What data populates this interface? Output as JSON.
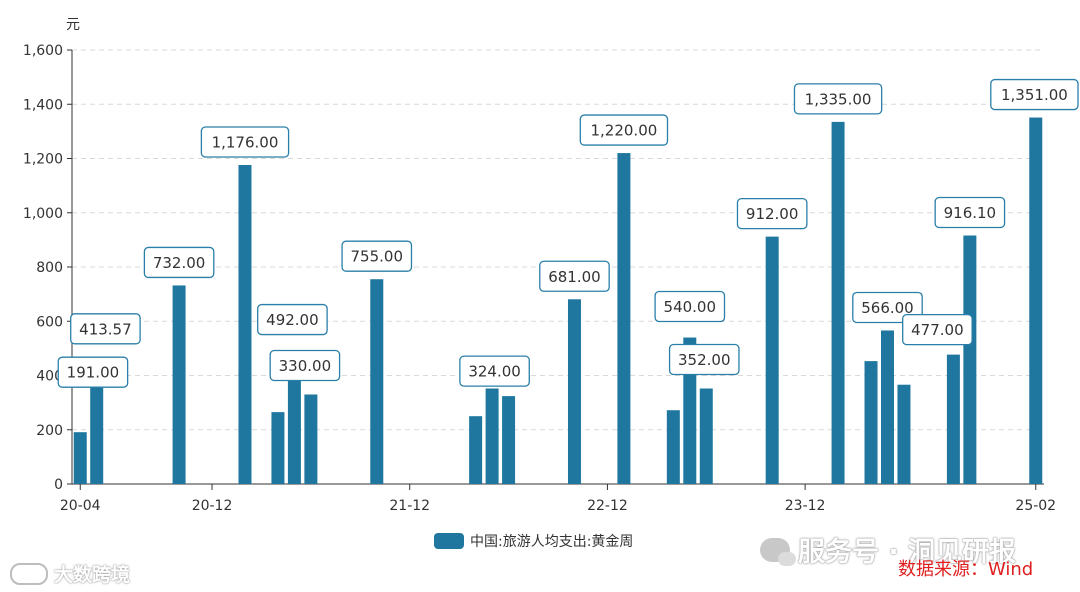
{
  "chart_data": {
    "type": "bar",
    "title": "",
    "ylabel": "元",
    "xlabel": "",
    "ylim": [
      0,
      1600
    ],
    "yticks": [
      "0",
      "200",
      "400",
      "600",
      "800",
      "1,000",
      "1,200",
      "1,400",
      "1,600"
    ],
    "xtick_labels": [
      "20-04",
      "20-12",
      "21-12",
      "22-12",
      "23-12",
      "25-02"
    ],
    "grid": true,
    "legend_position": "bottom-center",
    "series": [
      {
        "name": "中国:旅游人均支出:黄金周",
        "color": "#1f77a0",
        "points": [
          {
            "x": "20-04",
            "value": 191,
            "label": "191.00"
          },
          {
            "x": "20-05",
            "value": 413.57,
            "label": "413.57"
          },
          {
            "x": "20-10",
            "value": 732,
            "label": "732.00"
          },
          {
            "x": "21-02",
            "value": 1176,
            "label": "1,176.00"
          },
          {
            "x": "21-04",
            "value": 265
          },
          {
            "x": "21-05",
            "value": 492,
            "label": "492.00"
          },
          {
            "x": "21-06",
            "value": 330,
            "label": "330.00"
          },
          {
            "x": "21-10",
            "value": 755,
            "label": "755.00"
          },
          {
            "x": "22-04",
            "value": 250
          },
          {
            "x": "22-05",
            "value": 352
          },
          {
            "x": "22-06",
            "value": 324,
            "label": "324.00"
          },
          {
            "x": "22-10",
            "value": 681,
            "label": "681.00"
          },
          {
            "x": "23-01",
            "value": 1220,
            "label": "1,220.00"
          },
          {
            "x": "23-04",
            "value": 272
          },
          {
            "x": "23-05",
            "value": 540,
            "label": "540.00"
          },
          {
            "x": "23-06",
            "value": 352,
            "label": "352.00"
          },
          {
            "x": "23-10",
            "value": 912,
            "label": "912.00"
          },
          {
            "x": "24-02",
            "value": 1335,
            "label": "1,335.00"
          },
          {
            "x": "24-04",
            "value": 453
          },
          {
            "x": "24-05",
            "value": 566,
            "label": "566.00"
          },
          {
            "x": "24-06",
            "value": 366
          },
          {
            "x": "24-09",
            "value": 477,
            "label": "477.00"
          },
          {
            "x": "24-10",
            "value": 916.1,
            "label": "916.10"
          },
          {
            "x": "25-02",
            "value": 1351,
            "label": "1,351.00"
          }
        ]
      }
    ]
  },
  "legend": {
    "label": "中国:旅游人均支出:黄金周",
    "color": "#1f77a0"
  },
  "watermarks": {
    "left": "大数跨境",
    "right": "服务号 · 洞见研报"
  },
  "source_note": "数据来源：Wind"
}
